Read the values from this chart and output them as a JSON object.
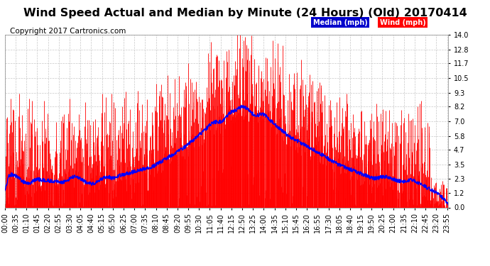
{
  "title": "Wind Speed Actual and Median by Minute (24 Hours) (Old) 20170414",
  "copyright": "Copyright 2017 Cartronics.com",
  "legend_median": "Median (mph)",
  "legend_wind": "Wind (mph)",
  "legend_median_color": "#0000ff",
  "legend_wind_color": "#ff0000",
  "yticks": [
    0.0,
    1.2,
    2.3,
    3.5,
    4.7,
    5.8,
    7.0,
    8.2,
    9.3,
    10.5,
    11.7,
    12.8,
    14.0
  ],
  "ylim": [
    0.0,
    14.0
  ],
  "xlim": [
    0,
    1439
  ],
  "background_color": "#ffffff",
  "plot_bg": "#ffffff",
  "grid_color": "#c8c8c8",
  "title_fontsize": 11.5,
  "copyright_fontsize": 7.5,
  "tick_fontsize": 7,
  "xtick_labels": [
    "00:00",
    "00:35",
    "01:10",
    "01:45",
    "02:20",
    "02:55",
    "03:30",
    "04:05",
    "04:40",
    "05:15",
    "05:50",
    "06:25",
    "07:00",
    "07:35",
    "08:10",
    "08:45",
    "09:20",
    "09:55",
    "10:30",
    "11:05",
    "11:40",
    "12:15",
    "12:50",
    "13:25",
    "14:00",
    "14:35",
    "15:10",
    "15:45",
    "16:20",
    "16:55",
    "17:30",
    "18:05",
    "18:40",
    "19:15",
    "19:50",
    "20:25",
    "21:00",
    "21:35",
    "22:10",
    "22:45",
    "23:20",
    "23:55"
  ],
  "xtick_positions": [
    0,
    35,
    70,
    105,
    140,
    175,
    210,
    245,
    280,
    315,
    350,
    385,
    420,
    455,
    490,
    525,
    560,
    595,
    630,
    665,
    700,
    735,
    770,
    805,
    840,
    875,
    910,
    945,
    980,
    1015,
    1050,
    1085,
    1120,
    1155,
    1190,
    1225,
    1260,
    1295,
    1330,
    1365,
    1400,
    1435
  ]
}
